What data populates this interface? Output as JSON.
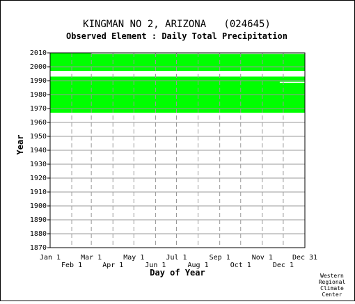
{
  "chart_data": {
    "type": "heatmap",
    "title": "KINGMAN NO 2, ARIZONA   (024645)",
    "subtitle": "Observed Element : Daily Total Precipitation",
    "xlabel": "Day of Year",
    "ylabel": "Year",
    "xlim": [
      1,
      366
    ],
    "ylim": [
      1870,
      2010
    ],
    "x_ticks_upper": [
      {
        "label": "Jan 1",
        "day": 1
      },
      {
        "label": "Mar 1",
        "day": 60
      },
      {
        "label": "May 1",
        "day": 121
      },
      {
        "label": "Jul 1",
        "day": 182
      },
      {
        "label": "Sep 1",
        "day": 244
      },
      {
        "label": "Nov 1",
        "day": 305
      },
      {
        "label": "Dec 31",
        "day": 366
      }
    ],
    "x_ticks_lower": [
      {
        "label": "Feb 1",
        "day": 32
      },
      {
        "label": "Apr 1",
        "day": 91
      },
      {
        "label": "Jun 1",
        "day": 152
      },
      {
        "label": "Aug 1",
        "day": 213
      },
      {
        "label": "Oct 1",
        "day": 274
      },
      {
        "label": "Dec 1",
        "day": 335
      }
    ],
    "y_ticks": [
      1870,
      1880,
      1890,
      1900,
      1910,
      1920,
      1930,
      1940,
      1950,
      1960,
      1970,
      1980,
      1990,
      2000,
      2010
    ],
    "grid": true,
    "data_color": "#00ff00",
    "data_coverage": [
      {
        "day_start": 1,
        "day_end": 366,
        "year_start": 1967,
        "year_end": 1993
      },
      {
        "day_start": 1,
        "day_end": 366,
        "year_start": 1997,
        "year_end": 2010
      }
    ],
    "missing_spans": [
      {
        "day_start": 1,
        "day_end": 244,
        "year_start": 1966.2,
        "year_end": 1967
      },
      {
        "day_start": 330,
        "day_end": 366,
        "year_start": 1988.5,
        "year_end": 1989.2
      },
      {
        "day_start": 60,
        "day_end": 366,
        "year_start": 2009.2,
        "year_end": 2010
      }
    ]
  },
  "credit_lines": [
    "Western",
    "Regional",
    "Climate",
    "Center"
  ]
}
